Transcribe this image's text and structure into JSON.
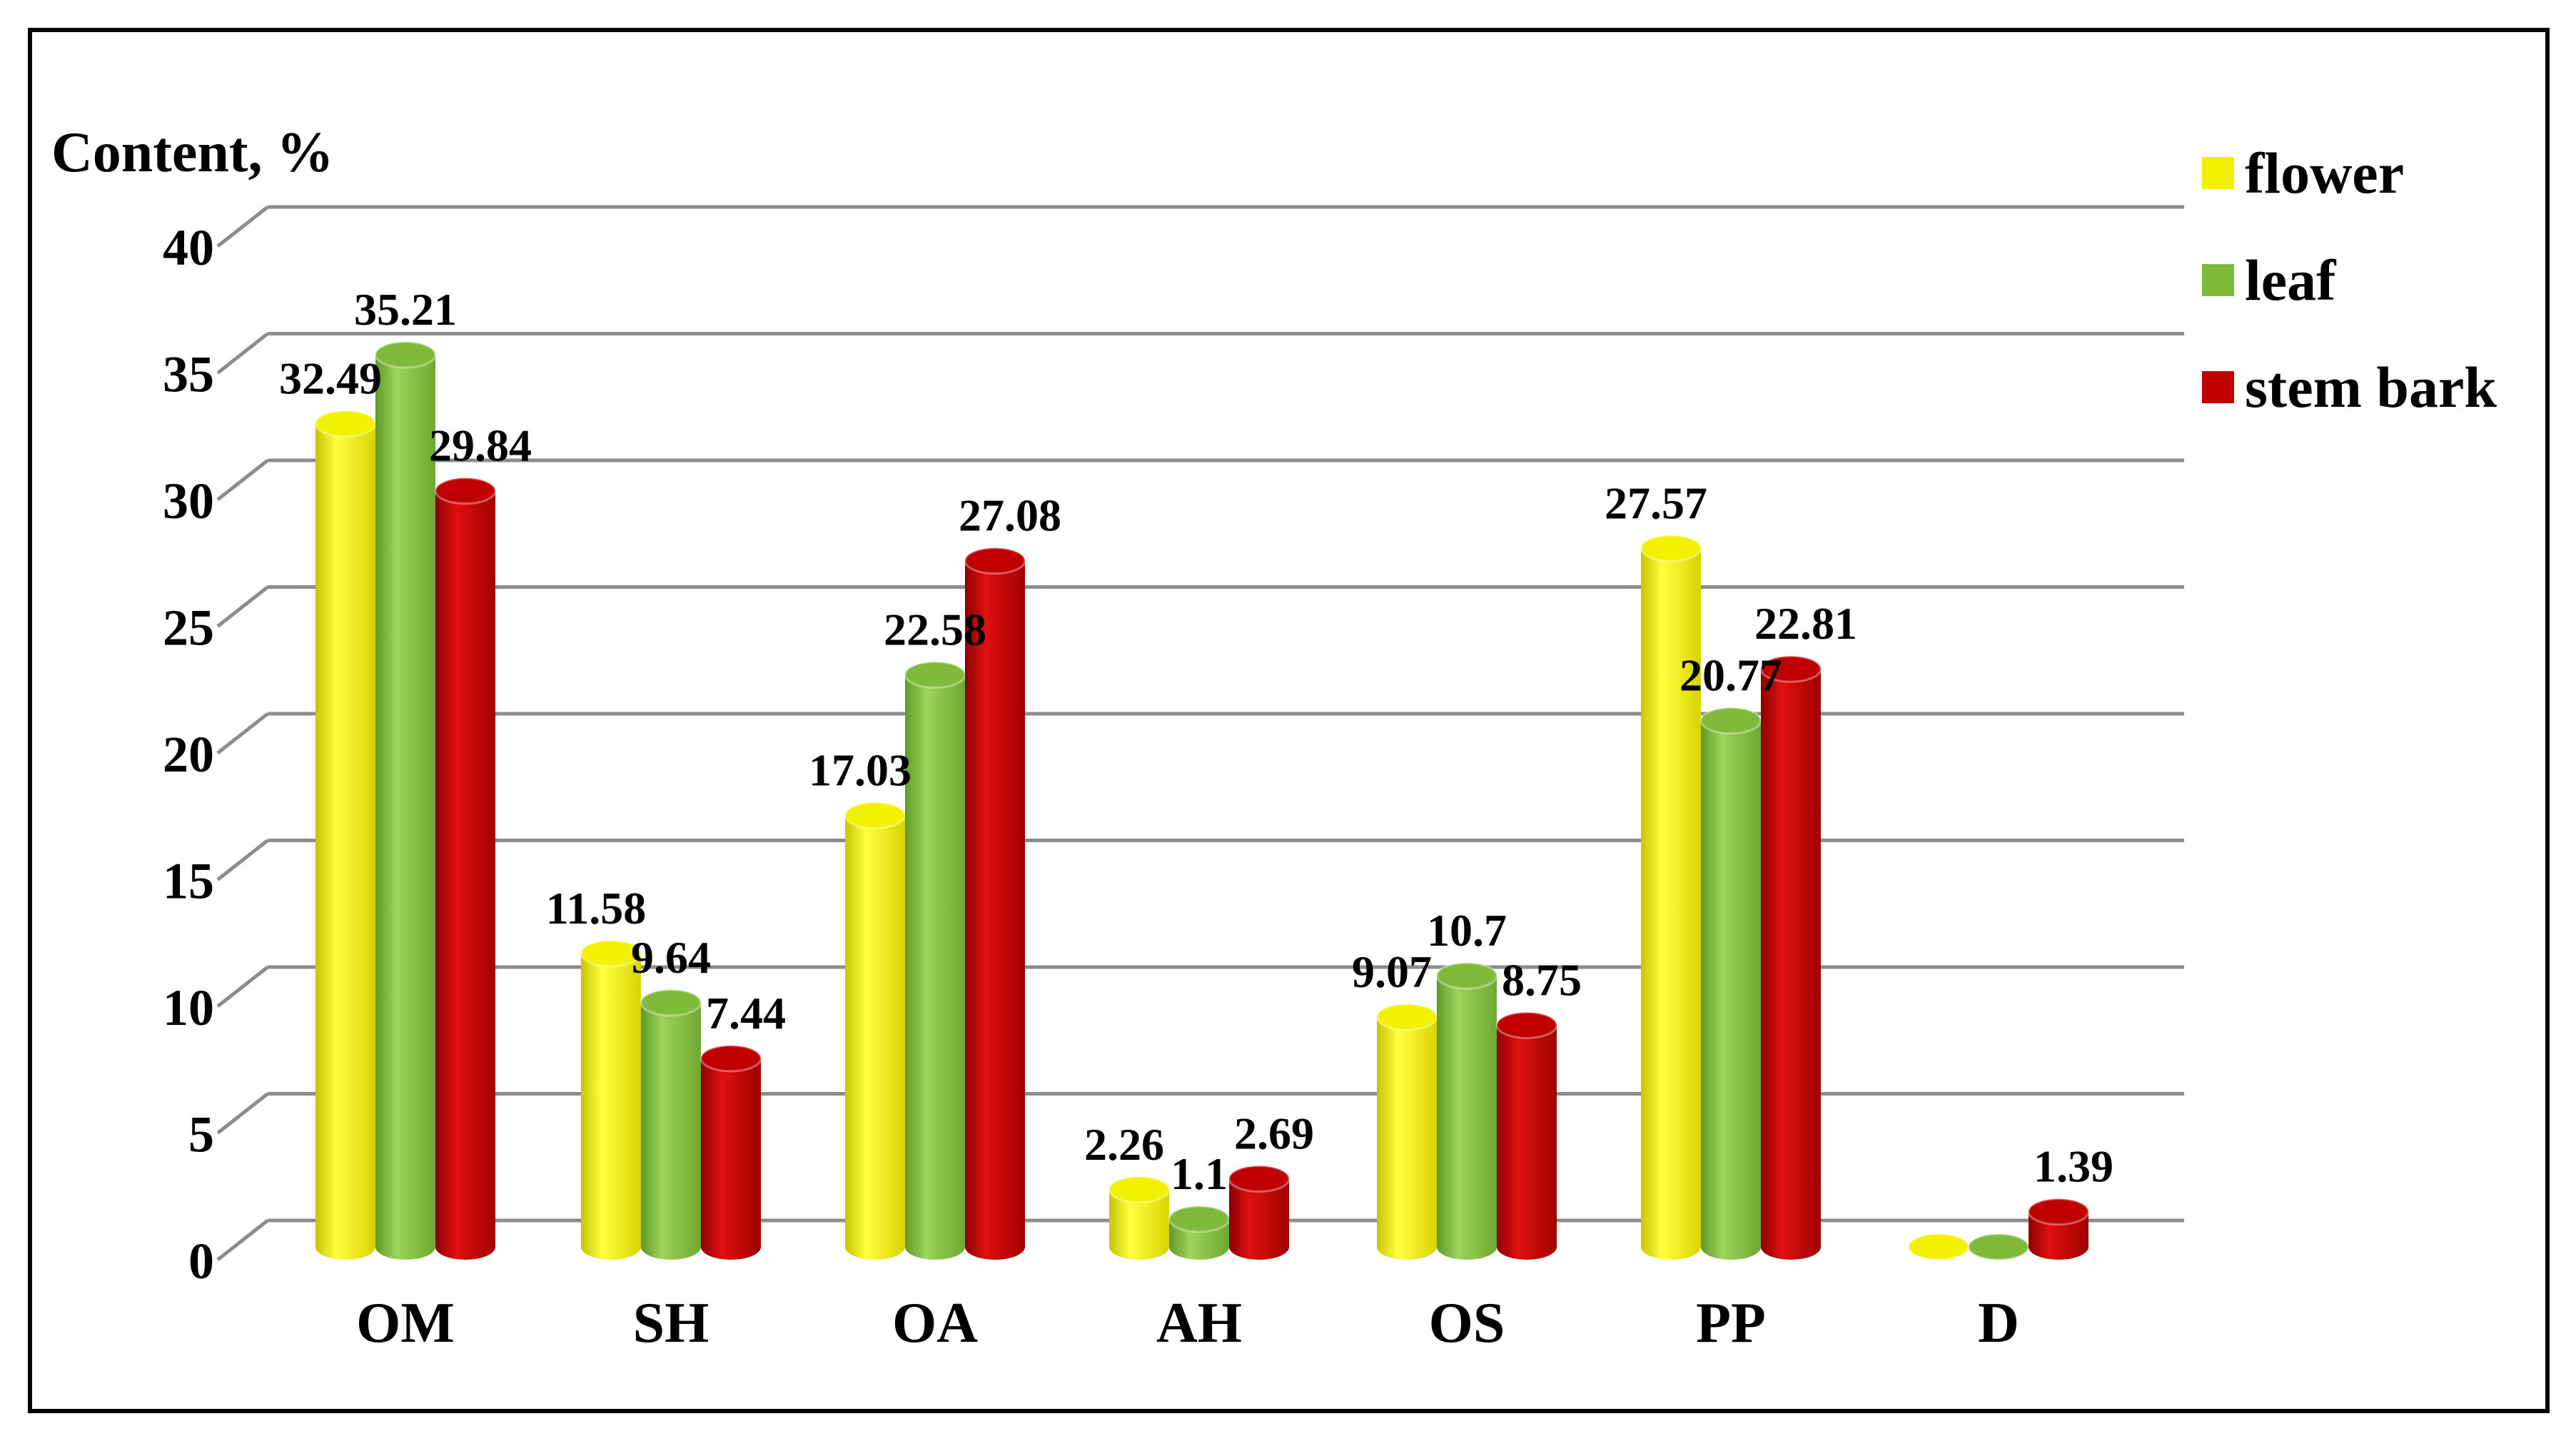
{
  "chart_data": {
    "type": "bar",
    "title": "",
    "ylabel": "Content, %",
    "xlabel": "",
    "ylim": [
      0,
      40
    ],
    "yticks": [
      0,
      5,
      10,
      15,
      20,
      25,
      30,
      35,
      40
    ],
    "grid": true,
    "legend_position": "top-right",
    "categories": [
      "OM",
      "SH",
      "OA",
      "AH",
      "OS",
      "PP",
      "D"
    ],
    "series": [
      {
        "name": "flower",
        "color": "#f2f200",
        "values": [
          32.49,
          11.58,
          17.03,
          2.26,
          9.07,
          27.57,
          0
        ]
      },
      {
        "name": "leaf",
        "color": "#7fba3a",
        "values": [
          35.21,
          9.64,
          22.58,
          1.1,
          10.7,
          20.77,
          0
        ]
      },
      {
        "name": "stem bark",
        "color": "#c00000",
        "values": [
          29.84,
          7.44,
          27.08,
          2.69,
          8.75,
          22.81,
          1.39
        ]
      }
    ],
    "data_labels": [
      [
        "32.49",
        "11.58",
        "17.03",
        "2.26",
        "9.07",
        "27.57",
        ""
      ],
      [
        "35.21",
        "9.64",
        "22.58",
        "1.1",
        "10.7",
        "20.77",
        ""
      ],
      [
        "29.84",
        "7.44",
        "27.08",
        "2.69",
        "8.75",
        "22.81",
        "1.39"
      ]
    ]
  }
}
